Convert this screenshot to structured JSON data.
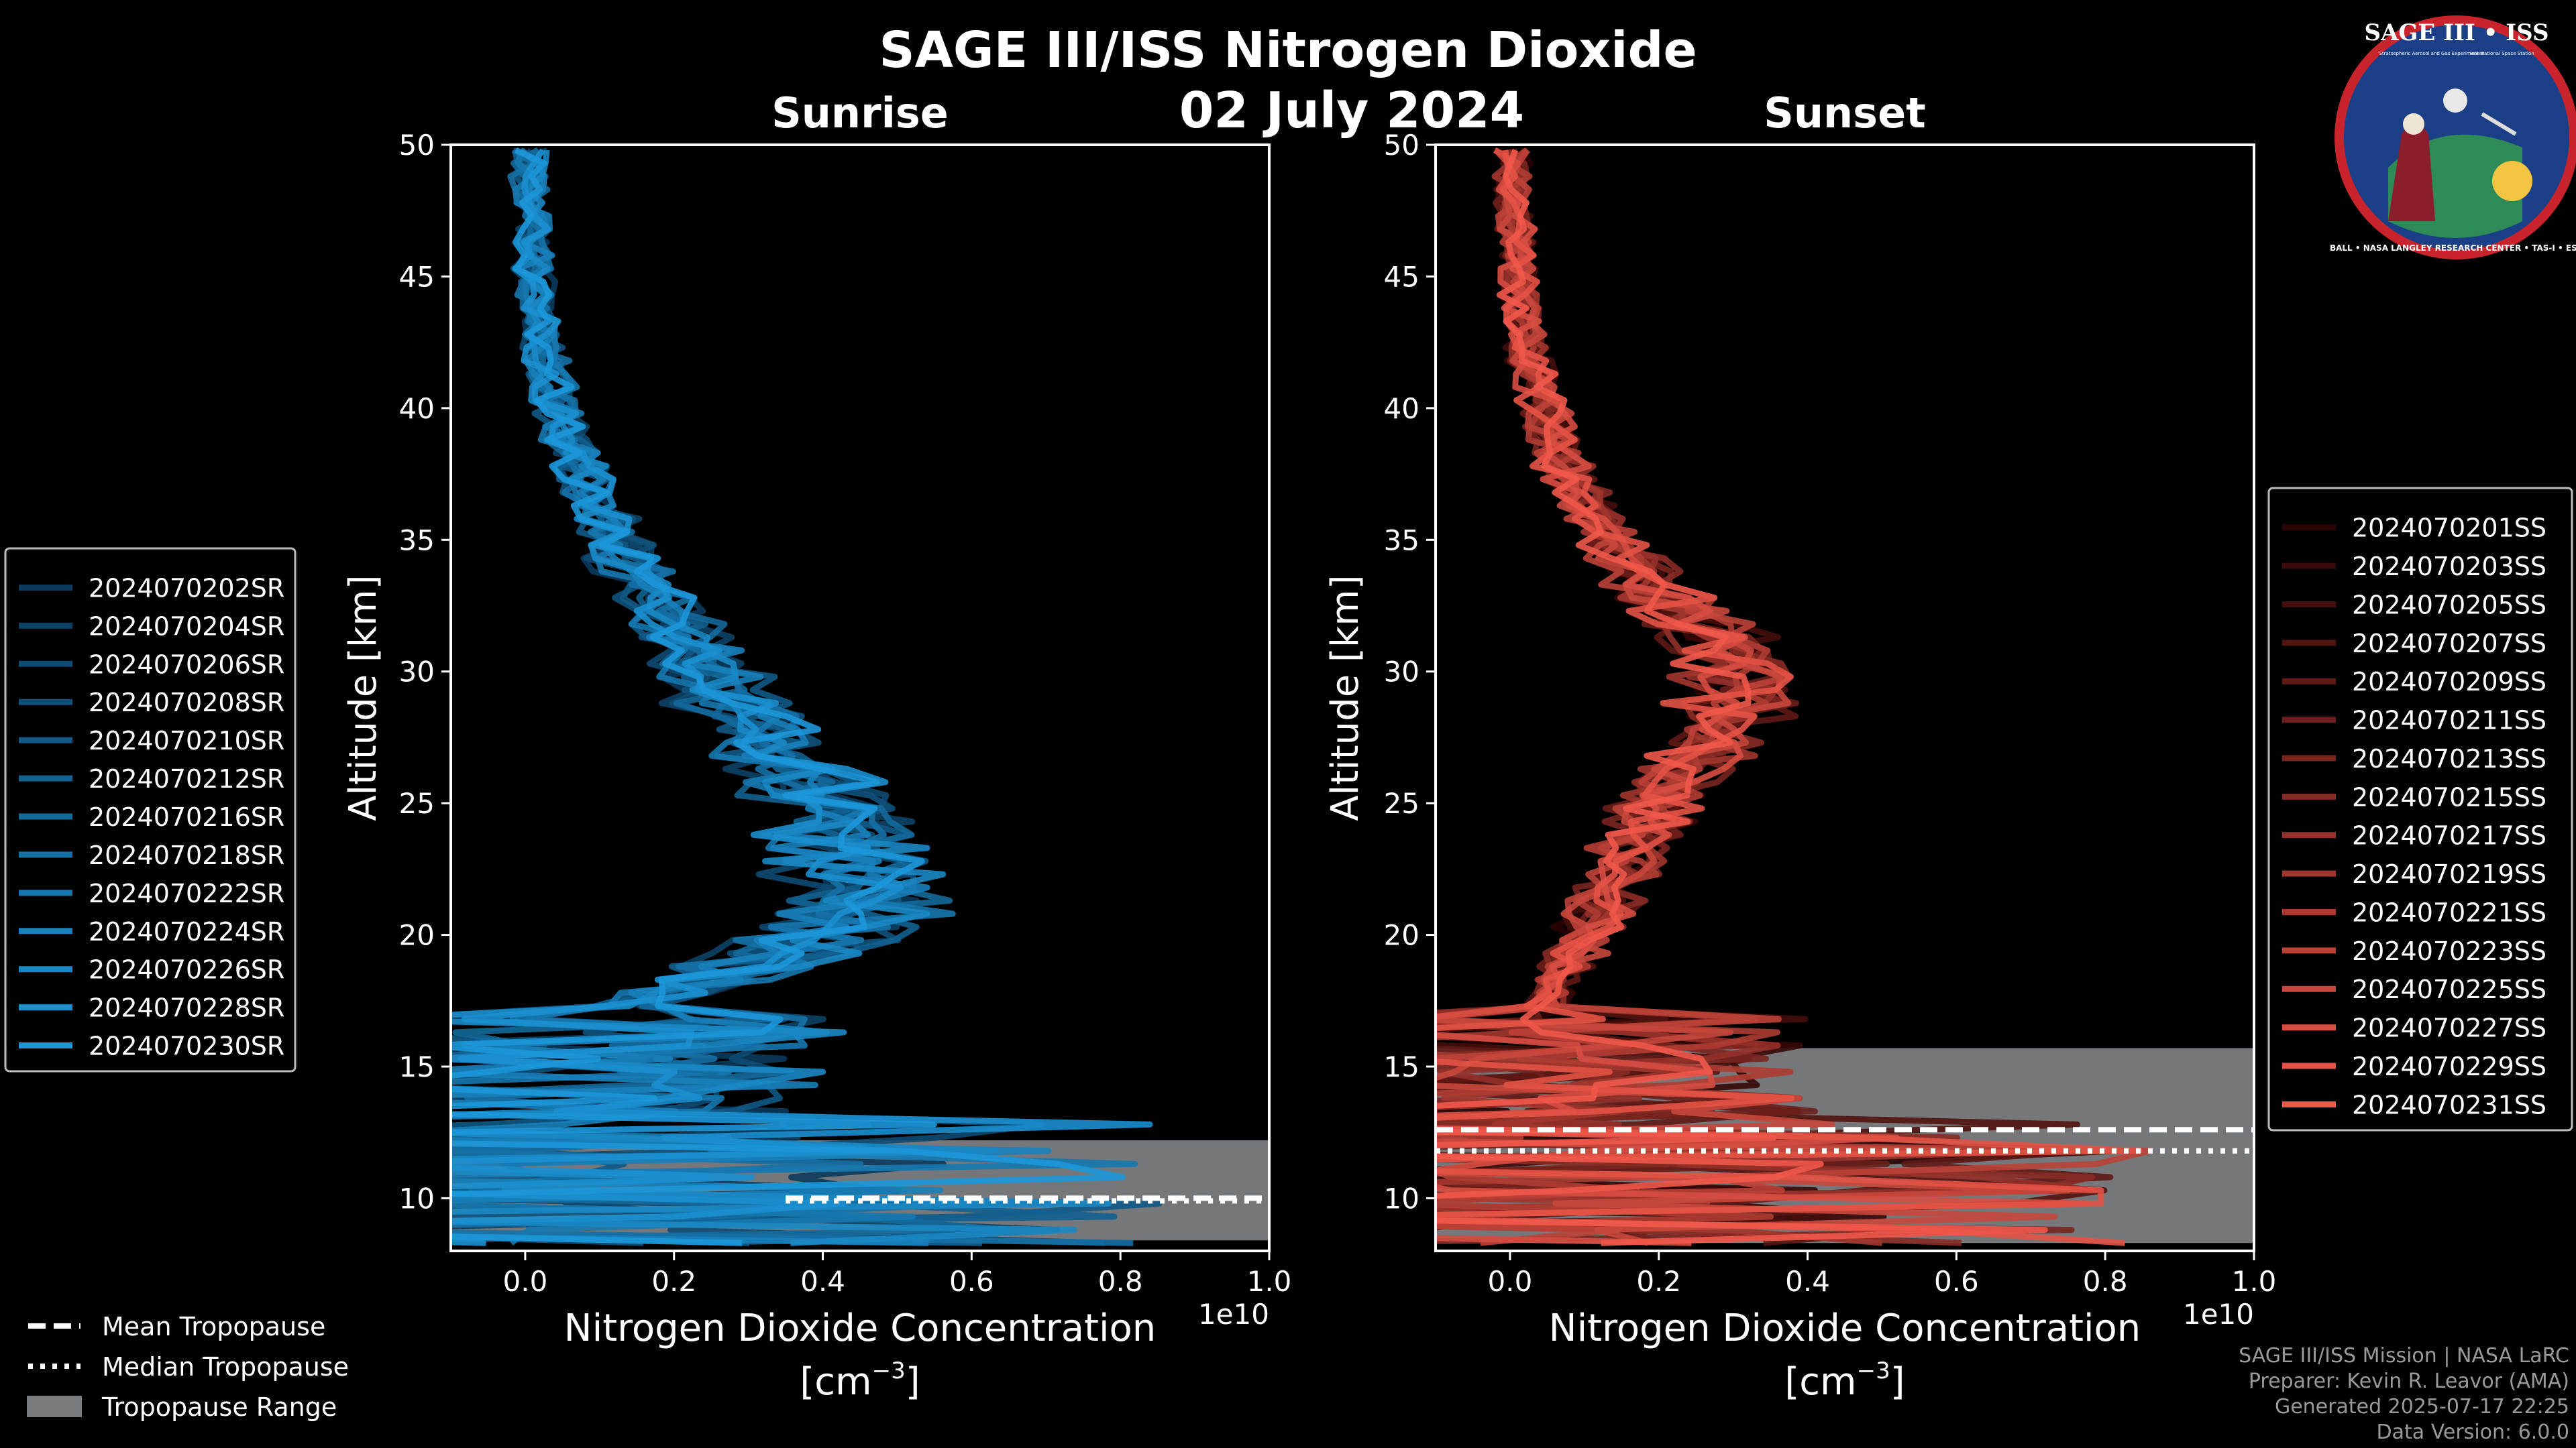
{
  "figure": {
    "title": "SAGE III/ISS Nitrogen Dioxide",
    "date": "02 July 2024",
    "logo": {
      "name": "SAGE III • ISS",
      "line1": "Stratospheric Aerosol and Gas Experiment III",
      "line2": "International Space Station",
      "ring": "BALL • NASA LANGLEY RESEARCH CENTER • TAS-I • ESA"
    },
    "footer": [
      "SAGE III/ISS Mission | NASA LaRC",
      "Preparer: Kevin R. Leavor (AMA)",
      "Generated 2025-07-17 22:25",
      "Data Version: 6.0.0"
    ],
    "tropo_legend": [
      "Mean Tropopause",
      "Median Tropopause",
      "Tropopause Range"
    ]
  },
  "chart_data": [
    {
      "type": "line",
      "subtitle": "Sunrise",
      "xlabel_line1": "Nitrogen Dioxide Concentration",
      "xlabel_line2": "[cm",
      "xlabel_sup": "−3",
      "xlabel_close": "]",
      "x_scale_label": "1e10",
      "ylabel": "Altitude [km]",
      "xlim": [
        -0.1,
        1.0
      ],
      "ylim": [
        8,
        50
      ],
      "xticks": [
        0.0,
        0.2,
        0.4,
        0.6,
        0.8,
        1.0
      ],
      "xtick_labels": [
        "0.0",
        "0.2",
        "0.4",
        "0.6",
        "0.8",
        "1.0"
      ],
      "yticks": [
        10,
        15,
        20,
        25,
        30,
        35,
        40,
        45,
        50
      ],
      "legend_position": "left",
      "color_dark": "#0b3a5c",
      "color_light": "#1c97d9",
      "tropopause": {
        "mean_km": 10.0,
        "median_km": 9.9,
        "range_km": [
          8.4,
          12.2
        ]
      },
      "profile_km": [
        8,
        9,
        10,
        11,
        12,
        13,
        14,
        15,
        16,
        17,
        18,
        19,
        20,
        21,
        22,
        23,
        24,
        25,
        26,
        27,
        28,
        29,
        30,
        31,
        32,
        33,
        34,
        35,
        36,
        37,
        38,
        39,
        40,
        41,
        42,
        43,
        44,
        45,
        46,
        47,
        48,
        49,
        50
      ],
      "profile_value": [
        0.05,
        0.05,
        0.06,
        0.06,
        0.06,
        0.05,
        0.05,
        0.05,
        0.06,
        0.12,
        0.22,
        0.32,
        0.42,
        0.44,
        0.45,
        0.44,
        0.42,
        0.4,
        0.37,
        0.34,
        0.31,
        0.28,
        0.25,
        0.22,
        0.19,
        0.16,
        0.14,
        0.12,
        0.1,
        0.085,
        0.07,
        0.055,
        0.045,
        0.035,
        0.025,
        0.02,
        0.015,
        0.012,
        0.01,
        0.008,
        0.006,
        0.005,
        0.004
      ],
      "series": [
        {
          "name": "2024070202SR"
        },
        {
          "name": "2024070204SR"
        },
        {
          "name": "2024070206SR"
        },
        {
          "name": "2024070208SR"
        },
        {
          "name": "2024070210SR"
        },
        {
          "name": "2024070212SR"
        },
        {
          "name": "2024070216SR"
        },
        {
          "name": "2024070218SR"
        },
        {
          "name": "2024070222SR"
        },
        {
          "name": "2024070224SR"
        },
        {
          "name": "2024070226SR"
        },
        {
          "name": "2024070228SR"
        },
        {
          "name": "2024070230SR"
        }
      ]
    },
    {
      "type": "line",
      "subtitle": "Sunset",
      "xlabel_line1": "Nitrogen Dioxide Concentration",
      "xlabel_line2": "[cm",
      "xlabel_sup": "−3",
      "xlabel_close": "]",
      "x_scale_label": "1e10",
      "ylabel": "Altitude [km]",
      "xlim": [
        -0.1,
        1.0
      ],
      "ylim": [
        8,
        50
      ],
      "xticks": [
        0.0,
        0.2,
        0.4,
        0.6,
        0.8,
        1.0
      ],
      "xtick_labels": [
        "0.0",
        "0.2",
        "0.4",
        "0.6",
        "0.8",
        "1.0"
      ],
      "yticks": [
        10,
        15,
        20,
        25,
        30,
        35,
        40,
        45,
        50
      ],
      "legend_position": "right",
      "color_dark": "#2a0303",
      "color_light": "#f0584a",
      "tropopause": {
        "mean_km": 12.6,
        "median_km": 11.8,
        "range_km": [
          8.3,
          15.7
        ]
      },
      "profile_km": [
        8,
        9,
        10,
        11,
        12,
        13,
        14,
        15,
        16,
        17,
        18,
        19,
        20,
        21,
        22,
        23,
        24,
        25,
        26,
        27,
        28,
        29,
        30,
        31,
        32,
        33,
        34,
        35,
        36,
        37,
        38,
        39,
        40,
        41,
        42,
        43,
        44,
        45,
        46,
        47,
        48,
        49,
        50
      ],
      "profile_value": [
        0.05,
        0.05,
        0.06,
        0.06,
        0.06,
        0.06,
        0.06,
        0.05,
        0.05,
        0.05,
        0.06,
        0.08,
        0.1,
        0.12,
        0.14,
        0.16,
        0.18,
        0.2,
        0.22,
        0.25,
        0.28,
        0.31,
        0.32,
        0.29,
        0.24,
        0.2,
        0.16,
        0.13,
        0.11,
        0.09,
        0.07,
        0.055,
        0.045,
        0.035,
        0.025,
        0.02,
        0.015,
        0.012,
        0.01,
        0.008,
        0.006,
        0.005,
        0.004
      ],
      "series": [
        {
          "name": "2024070201SS"
        },
        {
          "name": "2024070203SS"
        },
        {
          "name": "2024070205SS"
        },
        {
          "name": "2024070207SS"
        },
        {
          "name": "2024070209SS"
        },
        {
          "name": "2024070211SS"
        },
        {
          "name": "2024070213SS"
        },
        {
          "name": "2024070215SS"
        },
        {
          "name": "2024070217SS"
        },
        {
          "name": "2024070219SS"
        },
        {
          "name": "2024070221SS"
        },
        {
          "name": "2024070223SS"
        },
        {
          "name": "2024070225SS"
        },
        {
          "name": "2024070227SS"
        },
        {
          "name": "2024070229SS"
        },
        {
          "name": "2024070231SS"
        }
      ]
    }
  ]
}
